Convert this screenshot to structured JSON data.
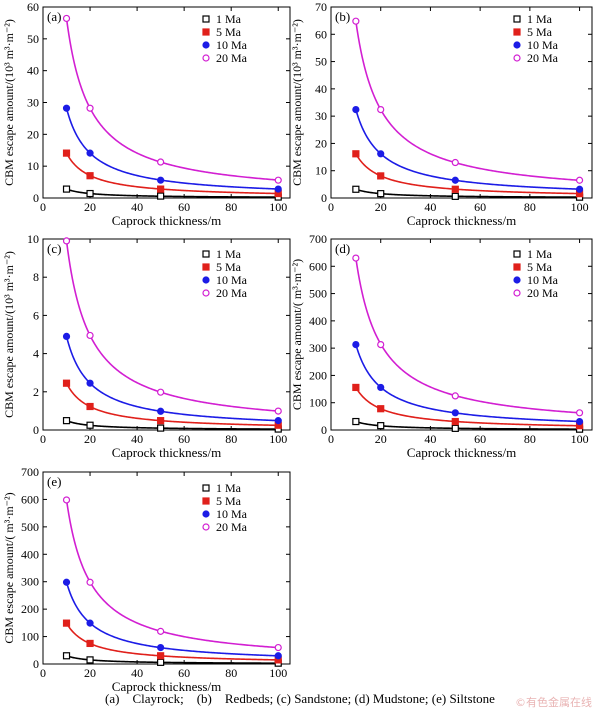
{
  "caption": "(a)    Clayrock;    (b)    Redbeds; (c) Sandstone; (d) Mudstone; (e) Siltstone",
  "watermark": "©有色金属在线",
  "colors": {
    "1 Ma": "#000000",
    "5 Ma": "#e0201b",
    "10 Ma": "#1c1ce6",
    "20 Ma": "#d21fd2"
  },
  "chart_data": [
    {
      "type": "line",
      "panel_label": "(a)",
      "xlabel": "Caprock thickness/m",
      "ylabel": "CBM escape amount/(10³ m³·m⁻²)",
      "xlim": [
        0,
        105
      ],
      "ylim": [
        0,
        60
      ],
      "xticks": [
        0,
        20,
        40,
        60,
        80,
        100
      ],
      "yticks": [
        0,
        10,
        20,
        30,
        40,
        50,
        60
      ],
      "legend_position": "top-right",
      "x": [
        10,
        20,
        50,
        100
      ],
      "series": [
        {
          "name": "1 Ma",
          "marker": "open-square",
          "values": [
            2.8,
            1.4,
            0.6,
            0.3
          ]
        },
        {
          "name": "5 Ma",
          "marker": "filled-square",
          "values": [
            14.1,
            7.0,
            2.8,
            1.4
          ]
        },
        {
          "name": "10 Ma",
          "marker": "filled-circle",
          "values": [
            28.2,
            14.1,
            5.6,
            2.8
          ]
        },
        {
          "name": "20 Ma",
          "marker": "open-circle",
          "values": [
            56.4,
            28.2,
            11.3,
            5.6
          ]
        }
      ]
    },
    {
      "type": "line",
      "panel_label": "(b)",
      "xlabel": "Caprock thickness/m",
      "ylabel": "CBM escape amount/(10³ m³·m⁻²)",
      "xlim": [
        0,
        105
      ],
      "ylim": [
        0,
        70
      ],
      "xticks": [
        0,
        20,
        40,
        60,
        80,
        100
      ],
      "yticks": [
        0,
        10,
        20,
        30,
        40,
        50,
        60,
        70
      ],
      "legend_position": "top-right",
      "x": [
        10,
        20,
        50,
        100
      ],
      "series": [
        {
          "name": "1 Ma",
          "marker": "open-square",
          "values": [
            3.2,
            1.6,
            0.6,
            0.3
          ]
        },
        {
          "name": "5 Ma",
          "marker": "filled-square",
          "values": [
            16.2,
            8.1,
            3.2,
            1.6
          ]
        },
        {
          "name": "10 Ma",
          "marker": "filled-circle",
          "values": [
            32.4,
            16.2,
            6.5,
            3.2
          ]
        },
        {
          "name": "20 Ma",
          "marker": "open-circle",
          "values": [
            64.8,
            32.4,
            13.0,
            6.5
          ]
        }
      ]
    },
    {
      "type": "line",
      "panel_label": "(c)",
      "xlabel": "Caprock thickness/m",
      "ylabel": "CBM escape amount/(10³ m³·m⁻²)",
      "xlim": [
        0,
        105
      ],
      "ylim": [
        0,
        10
      ],
      "xticks": [
        0,
        20,
        40,
        60,
        80,
        100
      ],
      "yticks": [
        0,
        2,
        4,
        6,
        8,
        10
      ],
      "legend_position": "top-right",
      "x": [
        10,
        20,
        50,
        100
      ],
      "series": [
        {
          "name": "1 Ma",
          "marker": "open-square",
          "values": [
            0.49,
            0.25,
            0.1,
            0.05
          ]
        },
        {
          "name": "5 Ma",
          "marker": "filled-square",
          "values": [
            2.45,
            1.23,
            0.49,
            0.25
          ]
        },
        {
          "name": "10 Ma",
          "marker": "filled-circle",
          "values": [
            4.9,
            2.45,
            0.98,
            0.49
          ]
        },
        {
          "name": "20 Ma",
          "marker": "open-circle",
          "values": [
            9.9,
            4.95,
            1.98,
            0.99
          ]
        }
      ]
    },
    {
      "type": "line",
      "panel_label": "(d)",
      "xlabel": "Caprock thickness/m",
      "ylabel": "CBM escape amount/( m³·m⁻²)",
      "xlim": [
        0,
        105
      ],
      "ylim": [
        0,
        700
      ],
      "xticks": [
        0,
        20,
        40,
        60,
        80,
        100
      ],
      "yticks": [
        0,
        100,
        200,
        300,
        400,
        500,
        600,
        700
      ],
      "legend_position": "top-right",
      "x": [
        10,
        20,
        50,
        100
      ],
      "series": [
        {
          "name": "1 Ma",
          "marker": "open-square",
          "values": [
            31,
            16,
            6,
            3
          ]
        },
        {
          "name": "5 Ma",
          "marker": "filled-square",
          "values": [
            156,
            78,
            31,
            16
          ]
        },
        {
          "name": "10 Ma",
          "marker": "filled-circle",
          "values": [
            313,
            156,
            63,
            31
          ]
        },
        {
          "name": "20 Ma",
          "marker": "open-circle",
          "values": [
            630,
            313,
            125,
            63
          ]
        }
      ]
    },
    {
      "type": "line",
      "panel_label": "(e)",
      "xlabel": "Caprock thickness/m",
      "ylabel": "CBM escape amount/( m³·m⁻²)",
      "xlim": [
        0,
        105
      ],
      "ylim": [
        0,
        700
      ],
      "xticks": [
        0,
        20,
        40,
        60,
        80,
        100
      ],
      "yticks": [
        0,
        100,
        200,
        300,
        400,
        500,
        600,
        700
      ],
      "legend_position": "top-right",
      "x": [
        10,
        20,
        50,
        100
      ],
      "series": [
        {
          "name": "1 Ma",
          "marker": "open-square",
          "values": [
            30,
            15,
            6,
            3
          ]
        },
        {
          "name": "5 Ma",
          "marker": "filled-square",
          "values": [
            149,
            75,
            30,
            15
          ]
        },
        {
          "name": "10 Ma",
          "marker": "filled-circle",
          "values": [
            298,
            149,
            60,
            30
          ]
        },
        {
          "name": "20 Ma",
          "marker": "open-circle",
          "values": [
            598,
            298,
            119,
            60
          ]
        }
      ]
    }
  ]
}
